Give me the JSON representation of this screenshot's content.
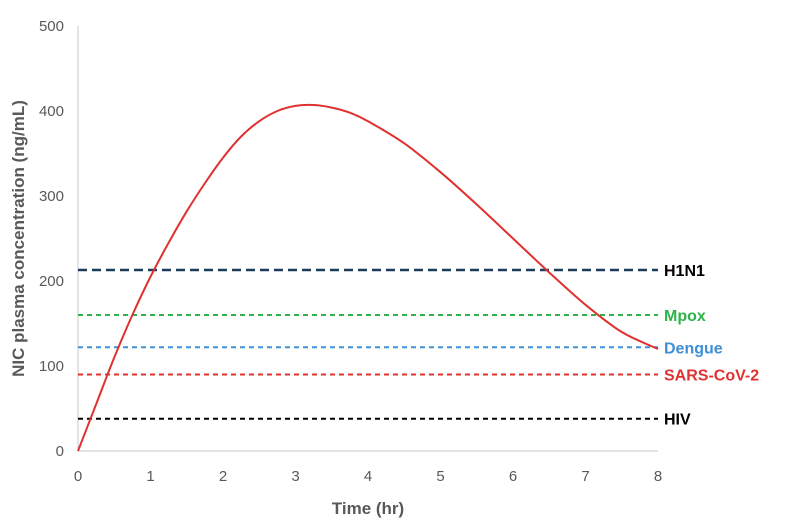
{
  "chart_data": {
    "type": "line",
    "title": "",
    "xlabel": "Time (hr)",
    "ylabel": "NIC plasma concentration (ng/mL)",
    "xlim": [
      0,
      8
    ],
    "ylim": [
      0,
      500
    ],
    "x_ticks": [
      0,
      1,
      2,
      3,
      4,
      5,
      6,
      7,
      8
    ],
    "y_ticks": [
      0,
      100,
      200,
      300,
      400,
      500
    ],
    "grid": false,
    "series": [
      {
        "name": "NIC plasma concentration",
        "color": "#e03131",
        "x": [
          0,
          0.25,
          0.5,
          0.75,
          1.0,
          1.25,
          1.5,
          1.75,
          2.0,
          2.25,
          2.5,
          2.75,
          3.0,
          3.25,
          3.5,
          3.75,
          4.0,
          4.5,
          5.0,
          5.5,
          6.0,
          6.5,
          7.0,
          7.5,
          8.0
        ],
        "y": [
          0,
          55,
          110,
          160,
          205,
          245,
          282,
          315,
          345,
          370,
          388,
          400,
          406,
          407,
          404,
          398,
          388,
          362,
          328,
          290,
          250,
          210,
          172,
          140,
          120
        ]
      }
    ],
    "reference_lines": [
      {
        "name": "H1N1",
        "label": "H1N1",
        "value": 213,
        "line_color": "#1f3b5c",
        "label_color": "#000000"
      },
      {
        "name": "Mpox",
        "label": "Mpox",
        "value": 160,
        "line_color": "#2db34a",
        "label_color": "#2db34a"
      },
      {
        "name": "Dengue",
        "label": "Dengue",
        "value": 122,
        "line_color": "#3d8fd6",
        "label_color": "#3d8fd6"
      },
      {
        "name": "SARS-CoV-2",
        "label": "SARS-CoV-2",
        "value": 90,
        "line_color": "#e03131",
        "label_color": "#e03131"
      },
      {
        "name": "HIV",
        "label": "HIV",
        "value": 38,
        "line_color": "#000000",
        "label_color": "#000000"
      }
    ]
  }
}
